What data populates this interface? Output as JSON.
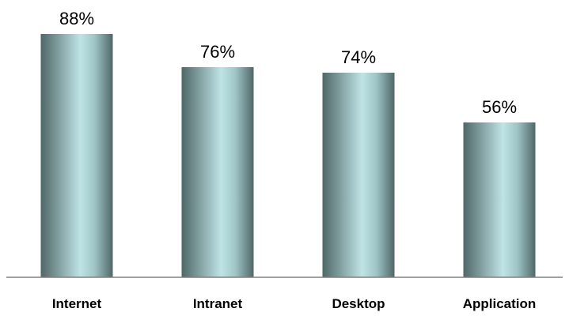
{
  "chart_data": {
    "type": "bar",
    "categories": [
      "Internet",
      "Intranet",
      "Desktop",
      "Application"
    ],
    "values": [
      88,
      76,
      74,
      56
    ],
    "value_labels": [
      "88%",
      "76%",
      "74%",
      "56%"
    ],
    "title": "",
    "xlabel": "",
    "ylabel": "",
    "ylim": [
      0,
      88
    ],
    "grid": false,
    "legend": "none"
  },
  "colors": {
    "bar_edge": "#4f6767",
    "bar_mid": "#9fc4c6",
    "bar_highlight": "#bfe4e6",
    "axis": "#808080"
  }
}
